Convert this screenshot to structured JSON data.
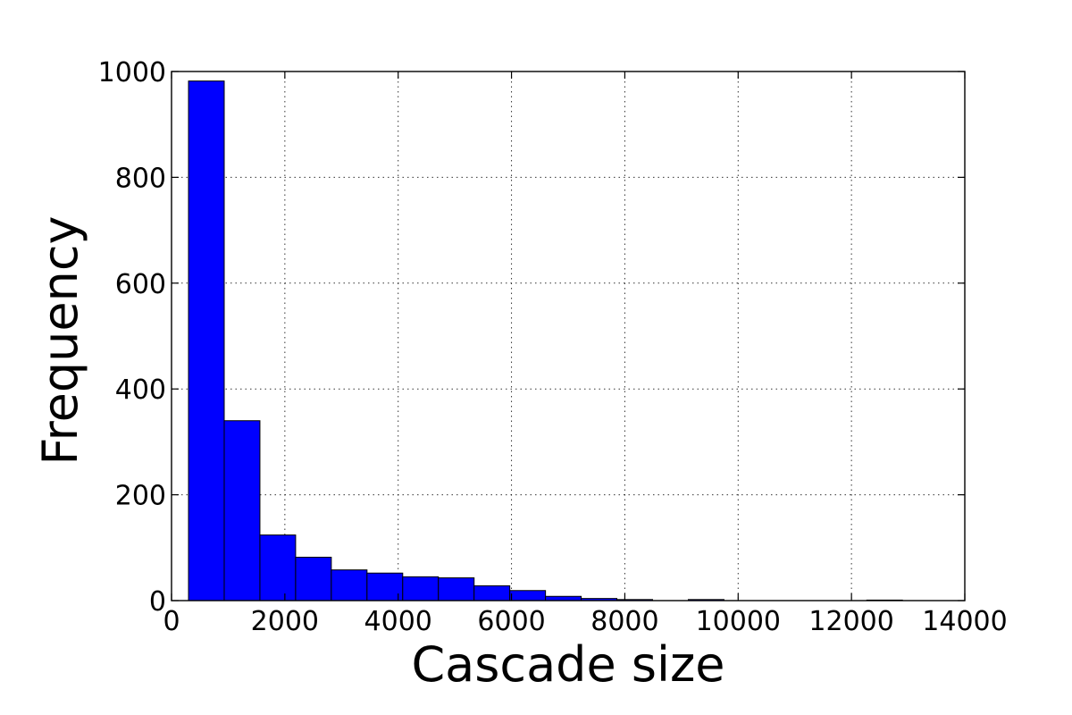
{
  "chart_data": {
    "type": "bar",
    "subtype": "histogram",
    "xlabel": "Cascade size",
    "ylabel": "Frequency",
    "xlim": [
      0,
      14000
    ],
    "ylim": [
      0,
      1000
    ],
    "xticks": [
      "0",
      "2000",
      "4000",
      "6000",
      "8000",
      "10000",
      "12000",
      "14000"
    ],
    "yticks": [
      "0",
      "200",
      "400",
      "600",
      "800",
      "1000"
    ],
    "grid": true,
    "bar_color": "#0000ff",
    "bin_edges": [
      300,
      930,
      1560,
      2190,
      2820,
      3450,
      4080,
      4710,
      5340,
      5970,
      6600,
      7230,
      7860,
      8490,
      9120,
      9750,
      10380,
      11010,
      11640,
      12270,
      12900
    ],
    "values": [
      982,
      340,
      124,
      82,
      58,
      52,
      45,
      43,
      28,
      19,
      8,
      4,
      2,
      0,
      2,
      0,
      0,
      0,
      0,
      1
    ]
  }
}
